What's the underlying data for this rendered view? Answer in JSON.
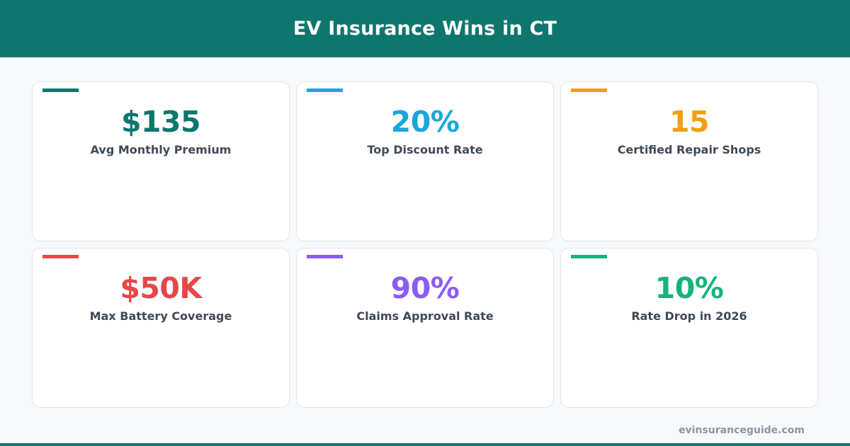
{
  "header": {
    "title": "EV Insurance Wins in CT",
    "background_color": "#0f766e"
  },
  "stats": [
    {
      "value": "$135",
      "label": "Avg Monthly Premium",
      "color": "#0f766e"
    },
    {
      "value": "20%",
      "label": "Top Discount Rate",
      "color": "#1ba6dd"
    },
    {
      "value": "15",
      "label": "Certified Repair Shops",
      "color": "#f0a012"
    },
    {
      "value": "$50K",
      "label": "Max Battery Coverage",
      "color": "#e54848"
    },
    {
      "value": "90%",
      "label": "Claims Approval Rate",
      "color": "#8b5cf6"
    },
    {
      "value": "10%",
      "label": "Rate Drop in 2026",
      "color": "#17b27a"
    }
  ],
  "footer": {
    "url": "evinsuranceguide.com"
  }
}
